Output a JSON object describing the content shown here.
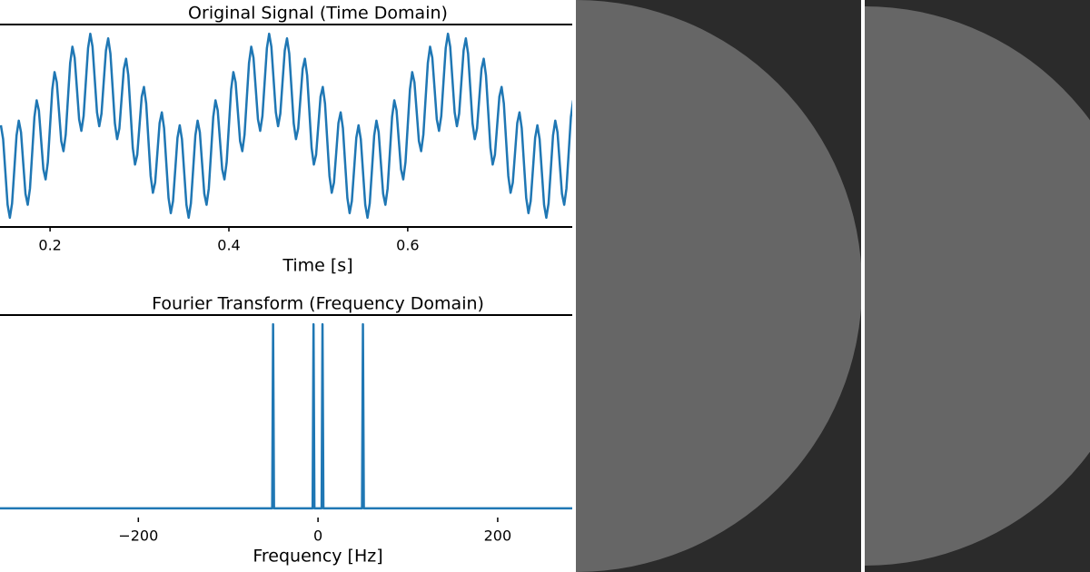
{
  "chart_data": [
    {
      "type": "line",
      "title": "Original Signal (Time Domain)",
      "xlabel": "Time [s]",
      "color": "#1f77b4",
      "x": [
        0.145,
        0.1475,
        0.15,
        0.1525,
        0.155,
        0.1575,
        0.16,
        0.1625,
        0.165,
        0.1675,
        0.17,
        0.1725,
        0.175,
        0.1775,
        0.18,
        0.1825,
        0.185,
        0.1875,
        0.19,
        0.1925,
        0.195,
        0.1975,
        0.2,
        0.2025,
        0.205,
        0.2075,
        0.21,
        0.2125,
        0.215,
        0.2175,
        0.22,
        0.2225,
        0.225,
        0.2275,
        0.23,
        0.2325,
        0.235,
        0.2375,
        0.24,
        0.2425,
        0.245,
        0.2475,
        0.25,
        0.2525,
        0.255,
        0.2575,
        0.26,
        0.2625,
        0.265,
        0.2675,
        0.27,
        0.2725,
        0.275,
        0.2775,
        0.28,
        0.2825,
        0.285,
        0.2875,
        0.29,
        0.2925,
        0.295,
        0.2975,
        0.3,
        0.3025,
        0.305,
        0.3075,
        0.31,
        0.3125,
        0.315,
        0.3175,
        0.32,
        0.3225,
        0.325,
        0.3275,
        0.33,
        0.3325,
        0.335,
        0.3375,
        0.34,
        0.3425,
        0.345,
        0.3475,
        0.35,
        0.3525,
        0.355,
        0.3575,
        0.36,
        0.3625,
        0.365,
        0.3675,
        0.37,
        0.3725,
        0.375,
        0.3775,
        0.38,
        0.3825,
        0.385,
        0.3875,
        0.39,
        0.3925,
        0.395,
        0.3975,
        0.4,
        0.4025,
        0.405,
        0.4075,
        0.41,
        0.4125,
        0.415,
        0.4175,
        0.42,
        0.4225,
        0.425,
        0.4275,
        0.43,
        0.4325,
        0.435,
        0.4375,
        0.44,
        0.4425,
        0.445,
        0.4475,
        0.45,
        0.4525,
        0.455,
        0.4575,
        0.46,
        0.4625,
        0.465,
        0.4675,
        0.47,
        0.4725,
        0.475,
        0.4775,
        0.48,
        0.4825,
        0.485,
        0.4875,
        0.49,
        0.4925,
        0.495,
        0.4975,
        0.5,
        0.5025,
        0.505,
        0.5075,
        0.51,
        0.5125,
        0.515,
        0.5175,
        0.52,
        0.5225,
        0.525,
        0.5275,
        0.53,
        0.5325,
        0.535,
        0.5375,
        0.54,
        0.5425,
        0.545,
        0.5475,
        0.55,
        0.5525,
        0.555,
        0.5575,
        0.56,
        0.5625,
        0.565,
        0.5675,
        0.57,
        0.5725,
        0.575,
        0.5775,
        0.58,
        0.5825,
        0.585,
        0.5875,
        0.59,
        0.5925,
        0.595,
        0.5975,
        0.6,
        0.6025,
        0.605,
        0.6075,
        0.61,
        0.6125,
        0.615,
        0.6175,
        0.62,
        0.6225,
        0.625,
        0.6275,
        0.63,
        0.6325,
        0.635,
        0.6375,
        0.64,
        0.6425,
        0.645,
        0.6475,
        0.65,
        0.6525,
        0.655,
        0.6575,
        0.66,
        0.6625,
        0.665,
        0.6675,
        0.67,
        0.6725,
        0.675,
        0.6775,
        0.68,
        0.6825,
        0.685,
        0.6875,
        0.69,
        0.6925,
        0.695,
        0.6975,
        0.7,
        0.7025,
        0.705,
        0.7075,
        0.71,
        0.7125,
        0.715,
        0.7175,
        0.72,
        0.7225,
        0.725,
        0.7275,
        0.73,
        0.7325,
        0.735,
        0.7375,
        0.74,
        0.7425,
        0.745,
        0.7475,
        0.75,
        0.7525,
        0.755,
        0.7575,
        0.76,
        0.7625,
        0.765,
        0.7675,
        0.77,
        0.7725,
        0.775,
        0.7775,
        0.78,
        0.7825,
        0.785
      ],
      "values": [
        0.01,
        -0.29,
        -1,
        -1.71,
        -1.99,
        -1.68,
        -0.95,
        -0.21,
        0.11,
        -0.14,
        -0.81,
        -1.47,
        -1.71,
        -1.36,
        -0.59,
        0.19,
        0.55,
        0.33,
        -0.31,
        -0.94,
        -1.16,
        -0.79,
        0,
        0.79,
        1.16,
        0.94,
        0.31,
        -0.33,
        -0.55,
        -0.19,
        0.59,
        1.36,
        1.71,
        1.47,
        0.81,
        0.14,
        -0.11,
        0.21,
        0.95,
        1.68,
        1.99,
        1.71,
        1,
        0.29,
        -0.01,
        0.26,
        0.95,
        1.63,
        1.89,
        1.56,
        0.81,
        0.05,
        -0.29,
        -0.06,
        0.59,
        1.23,
        1.45,
        1.09,
        0.31,
        -0.48,
        -0.84,
        -0.63,
        0,
        0.63,
        0.84,
        0.48,
        -0.31,
        -1.09,
        -1.45,
        -1.23,
        -0.59,
        0.06,
        0.29,
        -0.05,
        -0.81,
        -1.56,
        -1.89,
        -1.63,
        -0.95,
        -0.26,
        0.01,
        -0.29,
        -1,
        -1.71,
        -1.99,
        -1.68,
        -0.95,
        -0.21,
        0.11,
        -0.14,
        -0.81,
        -1.47,
        -1.71,
        -1.36,
        -0.59,
        0.19,
        0.55,
        0.33,
        -0.31,
        -0.94,
        -1.16,
        -0.79,
        0,
        0.79,
        1.16,
        0.94,
        0.31,
        -0.33,
        -0.55,
        -0.19,
        0.59,
        1.36,
        1.71,
        1.47,
        0.81,
        0.14,
        -0.11,
        0.21,
        0.95,
        1.68,
        1.99,
        1.71,
        1,
        0.29,
        -0.01,
        0.26,
        0.95,
        1.63,
        1.89,
        1.56,
        0.81,
        0.05,
        -0.29,
        -0.06,
        0.59,
        1.23,
        1.45,
        1.09,
        0.31,
        -0.48,
        -0.84,
        -0.63,
        0,
        0.63,
        0.84,
        0.48,
        -0.31,
        -1.09,
        -1.45,
        -1.23,
        -0.59,
        0.06,
        0.29,
        -0.05,
        -0.81,
        -1.56,
        -1.89,
        -1.63,
        -0.95,
        -0.26,
        0.01,
        -0.29,
        -1,
        -1.71,
        -1.99,
        -1.68,
        -0.95,
        -0.21,
        0.11,
        -0.14,
        -0.81,
        -1.47,
        -1.71,
        -1.36,
        -0.59,
        0.19,
        0.55,
        0.33,
        -0.31,
        -0.94,
        -1.16,
        -0.79,
        0,
        0.79,
        1.16,
        0.94,
        0.31,
        -0.33,
        -0.55,
        -0.19,
        0.59,
        1.36,
        1.71,
        1.47,
        0.81,
        0.14,
        -0.11,
        0.21,
        0.95,
        1.68,
        1.99,
        1.71,
        1,
        0.29,
        -0.01,
        0.26,
        0.95,
        1.63,
        1.89,
        1.56,
        0.81,
        0.05,
        -0.29,
        -0.06,
        0.59,
        1.23,
        1.45,
        1.09,
        0.31,
        -0.48,
        -0.84,
        -0.63,
        0,
        0.63,
        0.84,
        0.48,
        -0.31,
        -1.09,
        -1.45,
        -1.23,
        -0.59,
        0.06,
        0.29,
        -0.05,
        -0.81,
        -1.56,
        -1.89,
        -1.63,
        -0.95,
        -0.26,
        0.01,
        -0.29,
        -1,
        -1.71,
        -1.99,
        -1.68,
        -0.95,
        -0.21,
        0.11,
        -0.14,
        -0.81,
        -1.47,
        -1.71,
        -1.36,
        -0.59,
        0.19,
        0.55
      ],
      "xlim": [
        0.144,
        0.784
      ],
      "ylim": [
        -2.19,
        2.19
      ],
      "xticks": [
        0.2,
        0.4,
        0.6
      ]
    },
    {
      "type": "line",
      "title": "Fourier Transform (Frequency Domain)",
      "xlabel": "Frequency [Hz]",
      "color": "#1f77b4",
      "x": [
        -354,
        -51,
        -50,
        -49,
        -6,
        -5,
        -4,
        4,
        5,
        6,
        49,
        50,
        51,
        283
      ],
      "values": [
        0,
        0,
        0.5,
        0,
        0,
        0.5,
        0,
        0,
        0.5,
        0,
        0,
        0.5,
        0,
        0
      ],
      "xlim": [
        -354,
        283
      ],
      "ylim": [
        -0.025,
        0.525
      ],
      "xticks": [
        {
          "value": -200,
          "label": "−200"
        },
        0,
        200
      ]
    }
  ]
}
